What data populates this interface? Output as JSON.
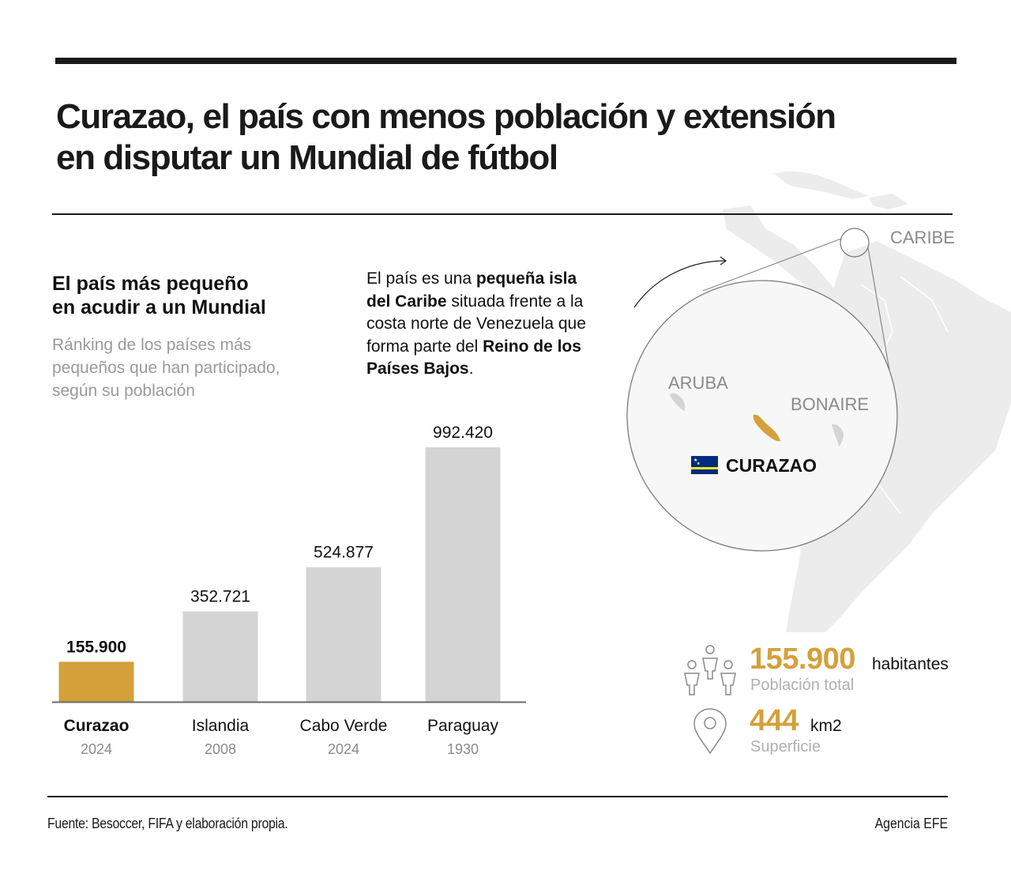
{
  "header": {
    "title_line1": "Curazao, el país con menos población y extensión",
    "title_line2": "en disputar un Mundial de fútbol"
  },
  "chart_section": {
    "title_line1": "El país más pequeño",
    "title_line2": "en acudir a un Mundial",
    "desc_line1": "Ránking de los países más",
    "desc_line2": "pequeños que han participado,",
    "desc_line3": "según su población"
  },
  "blurb": {
    "l1_a": "El país es una ",
    "l1_b": "pequeña isla",
    "l2_a": "del Caribe",
    "l2_b": " situada frente a la",
    "l3": "costa norte de Venezuela que",
    "l4_a": "forma parte del ",
    "l4_b": "Reino de los",
    "l5_a": "Países Bajos",
    "l5_b": "."
  },
  "chart_data": {
    "type": "bar",
    "title": "El país más pequeño en acudir a un Mundial",
    "subtitle": "Ránking de los países más pequeños que han participado, según su población",
    "categories": [
      "Curazao",
      "Islandia",
      "Cabo Verde",
      "Paraguay"
    ],
    "years": [
      "2024",
      "2008",
      "2024",
      "1930"
    ],
    "values": [
      155900,
      352721,
      524877,
      992420
    ],
    "value_labels": [
      "155.900",
      "352.721",
      "524.877",
      "992.420"
    ],
    "highlight": "Curazao",
    "colors": {
      "highlight": "#d4a03a",
      "default": "#d4d4d4"
    },
    "xlabel": "",
    "ylabel": "",
    "ylim": [
      0,
      1000000
    ],
    "grid": false
  },
  "map": {
    "region_label": "CARIBE",
    "islands": [
      {
        "name": "ARUBA",
        "highlight": false
      },
      {
        "name": "BONAIRE",
        "highlight": false
      },
      {
        "name": "CURAZAO",
        "highlight": true
      }
    ],
    "flag_name": "Bandera de Curazao",
    "colors": {
      "flag_blue": "#002b7f",
      "flag_yellow": "#f9e814",
      "land": "#ececec",
      "highlight": "#d4a03a"
    }
  },
  "stats": {
    "population_value": "155.900",
    "population_unit": "habitantes",
    "population_caption": "Población total",
    "area_value": "444",
    "area_unit": "km2",
    "area_caption": "Superficie"
  },
  "footer": {
    "source": "Fuente: Besoccer, FIFA y elaboración propia.",
    "agency": "Agencia EFE"
  }
}
